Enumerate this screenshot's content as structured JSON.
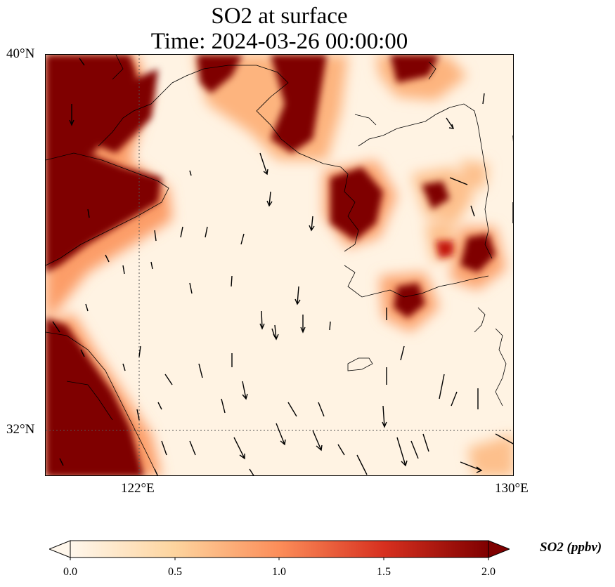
{
  "title": {
    "line1": "SO2 at surface",
    "line2": "Time: 2024-03-26 00:00:00"
  },
  "map": {
    "lat_labels": [
      "40°N",
      "32°N"
    ],
    "lon_labels": [
      "122°E",
      "130°E"
    ],
    "extent": {
      "lon_min": 120,
      "lon_max": 130,
      "lat_min": 31,
      "lat_max": 40
    },
    "gridlines": {
      "lon": 122,
      "lat": 32,
      "style": "dotted"
    }
  },
  "colorbar": {
    "label": "SO2 (ppbv)",
    "ticks": [
      "0.0",
      "0.5",
      "1.0",
      "1.5",
      "2.0"
    ],
    "range": [
      0.0,
      2.0
    ],
    "extend": "both",
    "colormap": "OrRd",
    "colors": [
      "#fff7ec",
      "#fdd49e",
      "#fc8d59",
      "#d7301f",
      "#7f0000"
    ]
  }
}
